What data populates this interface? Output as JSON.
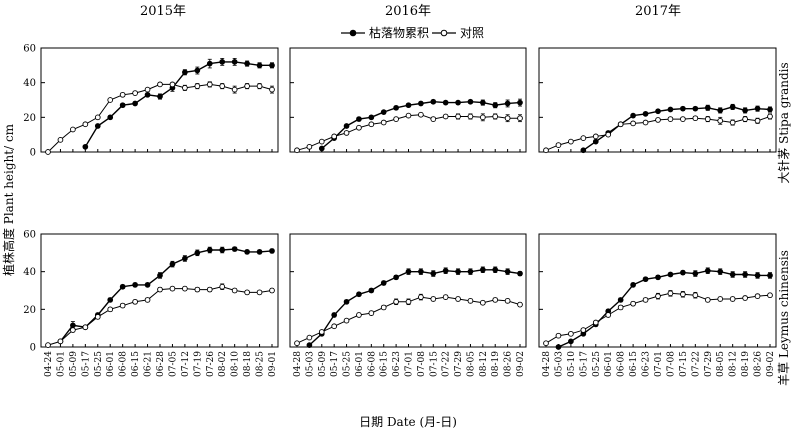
{
  "chart_data": {
    "type": "line",
    "title": "",
    "xlabel": "日期 Date (月-日)",
    "ylabel": "植株高度 Plant height/ cm",
    "ylim": [
      0,
      60
    ],
    "yticks": [
      0,
      20,
      40,
      60
    ],
    "legend": {
      "placement": "top-center",
      "items": [
        {
          "name": "枯落物累积",
          "marker": "filled-circle"
        },
        {
          "name": "对照",
          "marker": "open-circle"
        }
      ]
    },
    "columns": [
      {
        "title": "2015年",
        "dates": [
          "04-24",
          "05-01",
          "05-09",
          "05-17",
          "05-25",
          "06-01",
          "06-08",
          "06-15",
          "06-21",
          "06-28",
          "07-05",
          "07-12",
          "07-19",
          "07-26",
          "08-02",
          "08-10",
          "08-18",
          "08-25",
          "09-01"
        ]
      },
      {
        "title": "2016年",
        "dates": [
          "04-28",
          "05-03",
          "05-09",
          "05-17",
          "05-25",
          "06-01",
          "06-08",
          "06-15",
          "06-23",
          "07-01",
          "07-08",
          "07-15",
          "07-22",
          "07-29",
          "08-05",
          "08-12",
          "08-19",
          "08-26",
          "09-02"
        ]
      },
      {
        "title": "2017年",
        "dates": [
          "04-28",
          "05-03",
          "05-10",
          "05-17",
          "05-25",
          "06-01",
          "06-08",
          "06-15",
          "06-23",
          "07-01",
          "07-08",
          "07-15",
          "07-22",
          "07-29",
          "08-05",
          "08-12",
          "08-19",
          "08-26",
          "09-02"
        ]
      }
    ],
    "rows": [
      {
        "label": "大针茅 Stipa grandis"
      },
      {
        "label": "羊草 Leymus chinensis"
      }
    ],
    "panels": [
      {
        "row": 0,
        "col": 0,
        "series": [
          {
            "name": "枯落物累积",
            "values": [
              null,
              null,
              null,
              3,
              15,
              20,
              27,
              28,
              33,
              32,
              37,
              46,
              47,
              51,
              52,
              52,
              51,
              50,
              50
            ],
            "errors": [
              0,
              0,
              0,
              0,
              1,
              1,
              1,
              1,
              1,
              1.5,
              2,
              1.5,
              2,
              2.5,
              2,
              2,
              1.5,
              1.5,
              1.5
            ]
          },
          {
            "name": "对照",
            "values": [
              0,
              7,
              13,
              16,
              20,
              30,
              33,
              34,
              36,
              39,
              39,
              37,
              38,
              39,
              38,
              36,
              38,
              38,
              36
            ],
            "errors": [
              0,
              0,
              0,
              0,
              0.5,
              0.5,
              1,
              1,
              1,
              1,
              1,
              1.5,
              1.5,
              1.5,
              1.5,
              2,
              1.5,
              1.5,
              2
            ]
          }
        ]
      },
      {
        "row": 0,
        "col": 1,
        "series": [
          {
            "name": "枯落物累积",
            "values": [
              null,
              null,
              2,
              8,
              15,
              19,
              20,
              23,
              25.5,
              27,
              28,
              29,
              28.5,
              28.5,
              29,
              28.5,
              27,
              28,
              28.5
            ],
            "errors": [
              0,
              0,
              0,
              0.5,
              1,
              1,
              1,
              1,
              1,
              1,
              1,
              1,
              1,
              1,
              1,
              1.5,
              1.5,
              2,
              2
            ]
          },
          {
            "name": "对照",
            "values": [
              1,
              3,
              6,
              9,
              11,
              14,
              16,
              17,
              19,
              21,
              21.5,
              19,
              20.5,
              20.5,
              20.5,
              20,
              20.5,
              19.5,
              19.5
            ],
            "errors": [
              0,
              0,
              0,
              0.5,
              0.5,
              1,
              1,
              1,
              1,
              1,
              1,
              1,
              1,
              1.5,
              1.5,
              2,
              1.5,
              2,
              2
            ]
          }
        ]
      },
      {
        "row": 0,
        "col": 2,
        "series": [
          {
            "name": "枯落物累积",
            "values": [
              null,
              null,
              null,
              1,
              6,
              11,
              16,
              21,
              22,
              23.5,
              24.5,
              25,
              25,
              25.5,
              24,
              26,
              24,
              25,
              24.5
            ],
            "errors": [
              0,
              0,
              0,
              0,
              0.5,
              0.5,
              1,
              1,
              1,
              1,
              1,
              1,
              1,
              1.5,
              1.5,
              1.5,
              1.5,
              1.5,
              1.5
            ]
          },
          {
            "name": "对照",
            "values": [
              1,
              4,
              6,
              8,
              9,
              10,
              16,
              16.5,
              17,
              18.5,
              19,
              19,
              19.5,
              19,
              18,
              17,
              19,
              18,
              20.5
            ],
            "errors": [
              0,
              0,
              0,
              0,
              0.5,
              0.5,
              1,
              1,
              1,
              1,
              1,
              1,
              1,
              1.5,
              2,
              1.5,
              1.5,
              1.5,
              1.5
            ]
          }
        ]
      },
      {
        "row": 1,
        "col": 0,
        "series": [
          {
            "name": "枯落物累积",
            "values": [
              null,
              3,
              11.5,
              10.5,
              17,
              25,
              32,
              33,
              33,
              38,
              44,
              47,
              50,
              51.5,
              51.5,
              52,
              50.5,
              50.5,
              51
            ],
            "errors": [
              0,
              0.5,
              2,
              0.5,
              1,
              1,
              1,
              1,
              1,
              1.5,
              1.5,
              1.5,
              1.5,
              1.5,
              1.5,
              1,
              1,
              1,
              1
            ]
          },
          {
            "name": "对照",
            "values": [
              1,
              3,
              9,
              10.5,
              16,
              20,
              22,
              24,
              25,
              30.5,
              31,
              31,
              30.5,
              30.5,
              32,
              30,
              29,
              29,
              30
            ],
            "errors": [
              0,
              0,
              0.5,
              0.5,
              1,
              1,
              1,
              1,
              1,
              1,
              1,
              1,
              1,
              1,
              1.5,
              1,
              1,
              1,
              1
            ]
          }
        ]
      },
      {
        "row": 1,
        "col": 1,
        "series": [
          {
            "name": "枯落物累积",
            "values": [
              null,
              1,
              7,
              17,
              24,
              28,
              30,
              34,
              37,
              40,
              40,
              39,
              40.5,
              40,
              40,
              41,
              41,
              40,
              39
            ],
            "errors": [
              0,
              0,
              0.5,
              1,
              1,
              1,
              1,
              1,
              1,
              1.5,
              1.5,
              1.5,
              1.5,
              1.5,
              1.5,
              1.5,
              1.5,
              1.5,
              1
            ]
          },
          {
            "name": "对照",
            "values": [
              2,
              5,
              8,
              11,
              14,
              17,
              18,
              21,
              24,
              24,
              26.5,
              25.5,
              26.5,
              25.5,
              24.5,
              23.5,
              25,
              24.5,
              22.5
            ],
            "errors": [
              0,
              0,
              0.5,
              0.5,
              1,
              1,
              1,
              1,
              1.5,
              1.5,
              1.5,
              1,
              1,
              1,
              1,
              1,
              1,
              1,
              1
            ]
          }
        ]
      },
      {
        "row": 1,
        "col": 2,
        "series": [
          {
            "name": "枯落物累积",
            "values": [
              null,
              0,
              3,
              7,
              12,
              19,
              25,
              33,
              36,
              37,
              38.5,
              39.5,
              39,
              40.5,
              40,
              38.5,
              38.5,
              38,
              38
            ],
            "errors": [
              0,
              0,
              0,
              0.5,
              1,
              1,
              1,
              1,
              1,
              1,
              1,
              1,
              1.5,
              1.5,
              1.5,
              1.5,
              1.5,
              1.5,
              1.5
            ]
          },
          {
            "name": "对照",
            "values": [
              2,
              6,
              7,
              9,
              13,
              17,
              21,
              23,
              25,
              27,
              28.5,
              28,
              27.5,
              25,
              25.5,
              25.5,
              26,
              27,
              27.5
            ],
            "errors": [
              0,
              0,
              0,
              0.5,
              0.5,
              1,
              1,
              1,
              1,
              1.5,
              1.5,
              1.5,
              1.5,
              1,
              1,
              1,
              1,
              1,
              1
            ]
          }
        ]
      }
    ]
  }
}
